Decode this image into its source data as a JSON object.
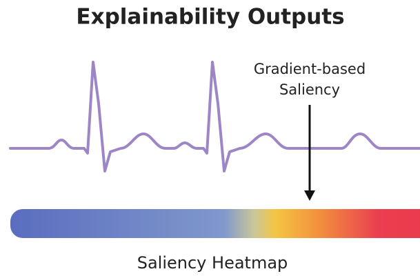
{
  "title": "Explainability Outputs",
  "annotation": {
    "lines": [
      "Gradient-based",
      "Saliency"
    ]
  },
  "heatmap": {
    "label": "Saliency Heatmap"
  }
}
